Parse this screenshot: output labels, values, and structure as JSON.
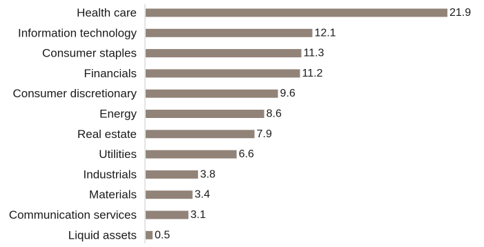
{
  "chart_data": {
    "type": "bar",
    "orientation": "horizontal",
    "title": "",
    "xlabel": "",
    "ylabel": "",
    "categories": [
      "Health care",
      "Information technology",
      "Consumer staples",
      "Financials",
      "Consumer discretionary",
      "Energy",
      "Real estate",
      "Utilities",
      "Industrials",
      "Materials",
      "Communication services",
      "Liquid assets"
    ],
    "values": [
      21.9,
      12.1,
      11.3,
      11.2,
      9.6,
      8.6,
      7.9,
      6.6,
      3.8,
      3.4,
      3.1,
      0.5
    ],
    "value_labels": [
      "21.9",
      "12.1",
      "11.3",
      "11.2",
      "9.6",
      "8.6",
      "7.9",
      "6.6",
      "3.8",
      "3.4",
      "3.1",
      "0.5"
    ],
    "xlim": [
      0,
      21.9
    ],
    "grid": false,
    "legend": "none",
    "bar_color": "#928379",
    "axis_color": "#c8c8c8"
  }
}
